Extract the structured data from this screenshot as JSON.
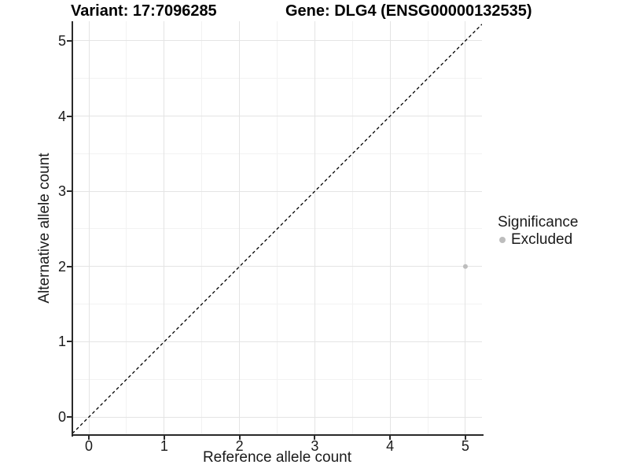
{
  "header": {
    "title_left": "Variant: 17:7096285",
    "title_right": "Gene: DLG4 (ENSG00000132535)"
  },
  "chart_data": {
    "type": "scatter",
    "title_left": "Variant: 17:7096285",
    "title_right": "Gene: DLG4 (ENSG00000132535)",
    "xlabel": "Reference allele count",
    "ylabel": "Alternative allele count",
    "xlim": [
      -0.22,
      5.22
    ],
    "ylim": [
      -0.24,
      5.26
    ],
    "xticks": [
      0,
      1,
      2,
      3,
      4,
      5
    ],
    "yticks": [
      0,
      1,
      2,
      3,
      4,
      5
    ],
    "grid": "major and minor gridlines on",
    "reference_line": {
      "type": "y=x diagonal",
      "style": "dashed",
      "color": "#000000"
    },
    "series": [
      {
        "name": "Excluded",
        "color": "#bdbdbd",
        "points": [
          [
            5,
            2
          ]
        ]
      }
    ],
    "legend": {
      "title": "Significance",
      "position": "right",
      "items": [
        {
          "label": "Excluded",
          "color": "#bdbdbd"
        }
      ]
    }
  },
  "colors": {
    "axis_line": "#2a2a2a",
    "grid_major": "#e4e4e4",
    "grid_minor": "#f2f2f2",
    "text": "#1a1a1a",
    "point": "#bdbdbd",
    "background": "#ffffff"
  }
}
